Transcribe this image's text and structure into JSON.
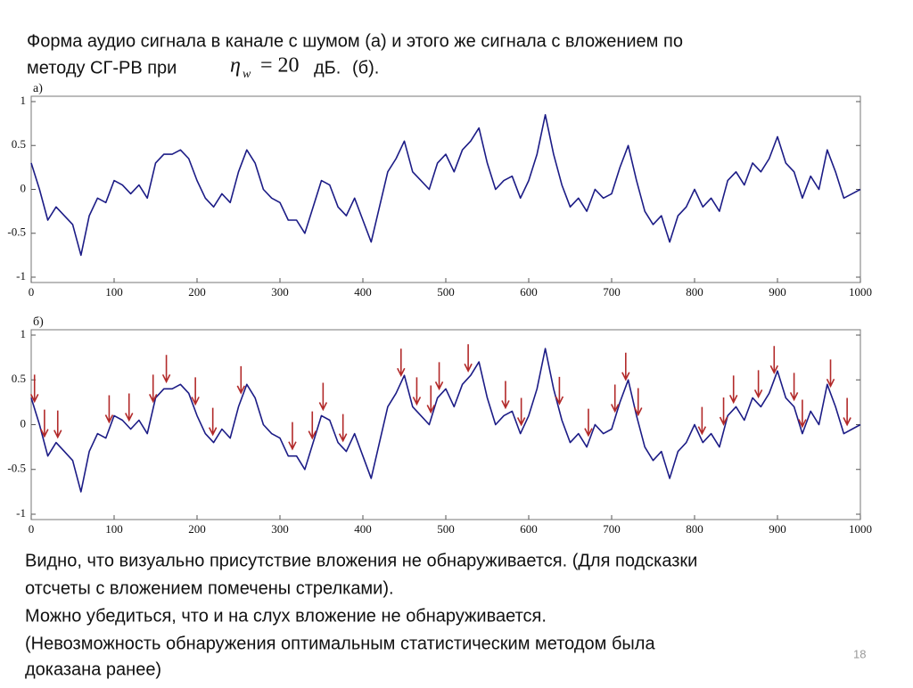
{
  "header": {
    "line1": "Форма аудио сигнала в канале с шумом (а) и этого же сигнала с вложением по",
    "line2": "методу СГ-РВ при",
    "symbol": "η",
    "subscript": "w",
    "equals": "= 20",
    "unit": "дБ.",
    "suffix": "(б)."
  },
  "chart_data": [
    {
      "type": "line",
      "title": "а)",
      "x": [
        0,
        10,
        20,
        30,
        40,
        50,
        60,
        70,
        80,
        90,
        100,
        110,
        120,
        130,
        140,
        150,
        160,
        170,
        180,
        190,
        200,
        210,
        220,
        230,
        240,
        250,
        260,
        270,
        280,
        290,
        300,
        310,
        320,
        330,
        340,
        350,
        360,
        370,
        380,
        390,
        400,
        410,
        420,
        430,
        440,
        450,
        460,
        470,
        480,
        490,
        500,
        510,
        520,
        530,
        540,
        550,
        560,
        570,
        580,
        590,
        600,
        610,
        620,
        630,
        640,
        650,
        660,
        670,
        680,
        690,
        700,
        710,
        720,
        730,
        740,
        750,
        760,
        770,
        780,
        790,
        800,
        810,
        820,
        830,
        840,
        850,
        860,
        870,
        880,
        890,
        900,
        910,
        920,
        930,
        940,
        950,
        960,
        970,
        980,
        990,
        1000
      ],
      "series": [
        {
          "color": "#1c1c86",
          "values": [
            0.3,
            0.0,
            -0.35,
            -0.2,
            -0.3,
            -0.4,
            -0.75,
            -0.3,
            -0.1,
            -0.15,
            0.1,
            0.05,
            -0.05,
            0.05,
            -0.1,
            0.3,
            0.4,
            0.4,
            0.45,
            0.35,
            0.1,
            -0.1,
            -0.2,
            -0.05,
            -0.15,
            0.2,
            0.45,
            0.3,
            0.0,
            -0.1,
            -0.15,
            -0.35,
            -0.35,
            -0.5,
            -0.2,
            0.1,
            0.05,
            -0.2,
            -0.3,
            -0.1,
            -0.35,
            -0.6,
            -0.2,
            0.2,
            0.35,
            0.55,
            0.2,
            0.1,
            0.0,
            0.3,
            0.4,
            0.2,
            0.45,
            0.55,
            0.7,
            0.3,
            0.0,
            0.1,
            0.15,
            -0.1,
            0.1,
            0.4,
            0.85,
            0.4,
            0.05,
            -0.2,
            -0.1,
            -0.25,
            0.0,
            -0.1,
            -0.05,
            0.25,
            0.5,
            0.1,
            -0.25,
            -0.4,
            -0.3,
            -0.6,
            -0.3,
            -0.2,
            0.0,
            -0.2,
            -0.1,
            -0.25,
            0.1,
            0.2,
            0.05,
            0.3,
            0.2,
            0.35,
            0.6,
            0.3,
            0.2,
            -0.1,
            0.15,
            0.0,
            0.45,
            0.2,
            -0.1,
            -0.05,
            0.0
          ]
        }
      ],
      "xlim": [
        0,
        1000
      ],
      "ylim": [
        -1,
        1
      ],
      "xticks": [
        0,
        100,
        200,
        300,
        400,
        500,
        600,
        700,
        800,
        900,
        1000
      ],
      "yticks": [
        -1,
        -0.5,
        0,
        0.5,
        1
      ]
    },
    {
      "type": "line",
      "title": "б)",
      "x": [
        0,
        10,
        20,
        30,
        40,
        50,
        60,
        70,
        80,
        90,
        100,
        110,
        120,
        130,
        140,
        150,
        160,
        170,
        180,
        190,
        200,
        210,
        220,
        230,
        240,
        250,
        260,
        270,
        280,
        290,
        300,
        310,
        320,
        330,
        340,
        350,
        360,
        370,
        380,
        390,
        400,
        410,
        420,
        430,
        440,
        450,
        460,
        470,
        480,
        490,
        500,
        510,
        520,
        530,
        540,
        550,
        560,
        570,
        580,
        590,
        600,
        610,
        620,
        630,
        640,
        650,
        660,
        670,
        680,
        690,
        700,
        710,
        720,
        730,
        740,
        750,
        760,
        770,
        780,
        790,
        800,
        810,
        820,
        830,
        840,
        850,
        860,
        870,
        880,
        890,
        900,
        910,
        920,
        930,
        940,
        950,
        960,
        970,
        980,
        990,
        1000
      ],
      "series": [
        {
          "color": "#1c1c86",
          "values": [
            0.3,
            0.0,
            -0.35,
            -0.2,
            -0.3,
            -0.4,
            -0.75,
            -0.3,
            -0.1,
            -0.15,
            0.1,
            0.05,
            -0.05,
            0.05,
            -0.1,
            0.3,
            0.4,
            0.4,
            0.45,
            0.35,
            0.1,
            -0.1,
            -0.2,
            -0.05,
            -0.15,
            0.2,
            0.45,
            0.3,
            0.0,
            -0.1,
            -0.15,
            -0.35,
            -0.35,
            -0.5,
            -0.2,
            0.1,
            0.05,
            -0.2,
            -0.3,
            -0.1,
            -0.35,
            -0.6,
            -0.2,
            0.2,
            0.35,
            0.55,
            0.2,
            0.1,
            0.0,
            0.3,
            0.4,
            0.2,
            0.45,
            0.55,
            0.7,
            0.3,
            0.0,
            0.1,
            0.15,
            -0.1,
            0.1,
            0.4,
            0.85,
            0.4,
            0.05,
            -0.2,
            -0.1,
            -0.25,
            0.0,
            -0.1,
            -0.05,
            0.25,
            0.5,
            0.1,
            -0.25,
            -0.4,
            -0.3,
            -0.6,
            -0.3,
            -0.2,
            0.0,
            -0.2,
            -0.1,
            -0.25,
            0.1,
            0.2,
            0.05,
            0.3,
            0.2,
            0.35,
            0.6,
            0.3,
            0.2,
            -0.1,
            0.15,
            0.0,
            0.45,
            0.2,
            -0.1,
            -0.05,
            0.0
          ]
        }
      ],
      "arrows_x": [
        4,
        16,
        32,
        94,
        118,
        147,
        163,
        198,
        219,
        253,
        315,
        339,
        352,
        376,
        446,
        465,
        482,
        492,
        527,
        572,
        591,
        637,
        672,
        704,
        717,
        732,
        809,
        835,
        847,
        877,
        896,
        920,
        930,
        964,
        984
      ],
      "arrow_color": "#b22a2a",
      "xlim": [
        0,
        1000
      ],
      "ylim": [
        -1,
        1
      ],
      "xticks": [
        0,
        100,
        200,
        300,
        400,
        500,
        600,
        700,
        800,
        900,
        1000
      ],
      "yticks": [
        -1,
        -0.5,
        0,
        0.5,
        1
      ]
    }
  ],
  "body": [
    "Видно, что визуально присутствие вложения не обнаруживается. (Для подсказки",
    "отсчеты с вложением помечены стрелками).",
    "Можно убедиться, что и на слух вложение не обнаруживается.",
    "(Невозможность обнаружения оптимальным статистическим методом была",
    "доказана ранее)"
  ],
  "page_number": "18"
}
